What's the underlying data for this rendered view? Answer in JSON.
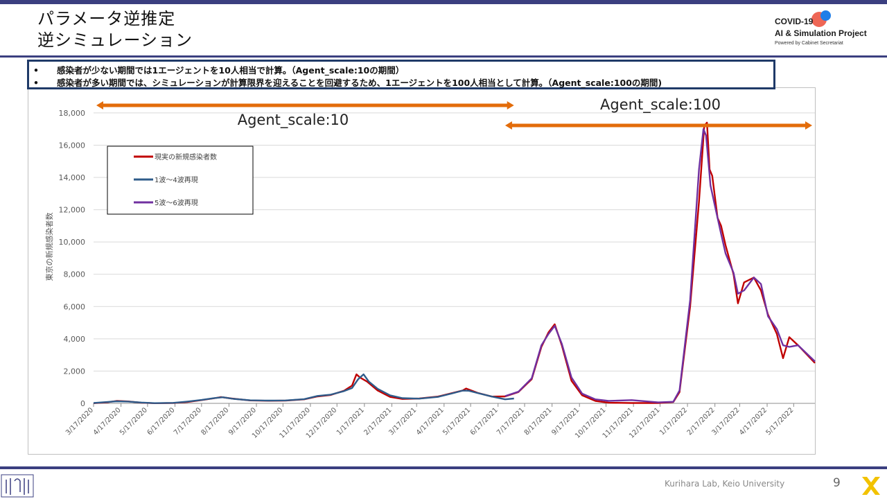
{
  "slide": {
    "title_line1": "パラメータ逆推定",
    "title_line2": "逆シミュレーション",
    "logo_line1": "COVID-19",
    "logo_line2": "AI & Simulation Project",
    "logo_line3": "Powered by Cabinet Secretariat",
    "notes": [
      "感染者が少ない期間では1エージェントを10人相当で計算。（Agent_scale:10の期間）",
      "感染者が多い期間では、シミュレーションが計算限界を迎えることを回避するため、1エージェントを100人相当として計算。（Agent_scale:100の期間)"
    ],
    "bullet": "•",
    "footer": "Kurihara Lab, Keio University",
    "page_number": "9",
    "colors": {
      "accent": "#3b3f80",
      "note_border": "#1f3a68",
      "arrow": "#e36c0a"
    }
  },
  "chart_data": {
    "type": "line",
    "ylabel": "東京の新規感染者数",
    "ylim": [
      0,
      19500
    ],
    "yticks": [
      0,
      2000,
      4000,
      6000,
      8000,
      10000,
      12000,
      14000,
      16000,
      18000
    ],
    "ytick_labels": [
      "0",
      "2,000",
      "4,000",
      "6,000",
      "8,000",
      "10,000",
      "12,000",
      "14,000",
      "16,000",
      "18,000"
    ],
    "xlim": [
      "2020-03-17",
      "2022-06-10"
    ],
    "xtick_labels": [
      "3/17/2020",
      "4/17/2020",
      "5/17/2020",
      "6/17/2020",
      "7/17/2020",
      "8/17/2020",
      "9/17/2020",
      "10/17/2020",
      "11/17/2020",
      "12/17/2020",
      "1/17/2021",
      "2/17/2021",
      "3/17/2021",
      "4/17/2021",
      "5/17/2021",
      "6/17/2021",
      "7/17/2021",
      "8/17/2021",
      "9/17/2021",
      "10/17/2021",
      "11/17/2021",
      "12/17/2021",
      "1/17/2022",
      "2/17/2022",
      "3/17/2022",
      "4/17/2022",
      "5/17/2022"
    ],
    "grid": true,
    "legend_placement": "top-left",
    "annotations": [
      {
        "label": "Agent_scale:10",
        "from": "2020-03-17",
        "to": "2021-07-05"
      },
      {
        "label": "Agent_scale:100",
        "from": "2021-06-25",
        "to": "2022-06-10"
      }
    ],
    "series": [
      {
        "name": "現実の新規感染者数",
        "color": "#c00000",
        "points": [
          [
            "2020-03-17",
            10
          ],
          [
            "2020-04-01",
            60
          ],
          [
            "2020-04-12",
            150
          ],
          [
            "2020-04-25",
            120
          ],
          [
            "2020-05-10",
            40
          ],
          [
            "2020-05-25",
            10
          ],
          [
            "2020-06-15",
            20
          ],
          [
            "2020-07-01",
            80
          ],
          [
            "2020-07-17",
            200
          ],
          [
            "2020-08-01",
            320
          ],
          [
            "2020-08-08",
            390
          ],
          [
            "2020-08-20",
            300
          ],
          [
            "2020-09-10",
            180
          ],
          [
            "2020-10-01",
            160
          ],
          [
            "2020-10-20",
            170
          ],
          [
            "2020-11-10",
            250
          ],
          [
            "2020-11-25",
            430
          ],
          [
            "2020-12-10",
            520
          ],
          [
            "2020-12-25",
            780
          ],
          [
            "2021-01-03",
            1100
          ],
          [
            "2021-01-08",
            1800
          ],
          [
            "2021-01-12",
            1600
          ],
          [
            "2021-01-20",
            1350
          ],
          [
            "2021-02-01",
            800
          ],
          [
            "2021-02-15",
            400
          ],
          [
            "2021-03-01",
            270
          ],
          [
            "2021-03-20",
            300
          ],
          [
            "2021-04-10",
            420
          ],
          [
            "2021-04-25",
            620
          ],
          [
            "2021-05-08",
            800
          ],
          [
            "2021-05-12",
            920
          ],
          [
            "2021-05-25",
            650
          ],
          [
            "2021-06-10",
            420
          ],
          [
            "2021-06-25",
            430
          ],
          [
            "2021-07-10",
            700
          ],
          [
            "2021-07-25",
            1500
          ],
          [
            "2021-08-05",
            3500
          ],
          [
            "2021-08-13",
            4400
          ],
          [
            "2021-08-20",
            4900
          ],
          [
            "2021-08-28",
            3600
          ],
          [
            "2021-09-08",
            1400
          ],
          [
            "2021-09-20",
            500
          ],
          [
            "2021-10-05",
            150
          ],
          [
            "2021-10-20",
            40
          ],
          [
            "2021-11-15",
            20
          ],
          [
            "2021-12-15",
            20
          ],
          [
            "2022-01-01",
            80
          ],
          [
            "2022-01-08",
            700
          ],
          [
            "2022-01-20",
            6000
          ],
          [
            "2022-01-30",
            12500
          ],
          [
            "2022-02-05",
            17200
          ],
          [
            "2022-02-08",
            17400
          ],
          [
            "2022-02-11",
            14500
          ],
          [
            "2022-02-14",
            14100
          ],
          [
            "2022-02-20",
            11500
          ],
          [
            "2022-02-24",
            11000
          ],
          [
            "2022-03-01",
            9800
          ],
          [
            "2022-03-10",
            8000
          ],
          [
            "2022-03-15",
            6200
          ],
          [
            "2022-03-22",
            7500
          ],
          [
            "2022-04-02",
            7800
          ],
          [
            "2022-04-10",
            7000
          ],
          [
            "2022-04-18",
            5500
          ],
          [
            "2022-04-28",
            4300
          ],
          [
            "2022-05-05",
            2800
          ],
          [
            "2022-05-12",
            4100
          ],
          [
            "2022-05-22",
            3600
          ],
          [
            "2022-06-10",
            2500
          ]
        ]
      },
      {
        "name": "1波～4波再現",
        "color": "#2e5b8a",
        "points": [
          [
            "2020-03-17",
            20
          ],
          [
            "2020-04-01",
            80
          ],
          [
            "2020-04-12",
            130
          ],
          [
            "2020-04-25",
            110
          ],
          [
            "2020-05-10",
            50
          ],
          [
            "2020-05-25",
            15
          ],
          [
            "2020-06-15",
            30
          ],
          [
            "2020-07-01",
            110
          ],
          [
            "2020-07-17",
            210
          ],
          [
            "2020-08-01",
            330
          ],
          [
            "2020-08-10",
            380
          ],
          [
            "2020-08-22",
            280
          ],
          [
            "2020-09-10",
            190
          ],
          [
            "2020-10-01",
            170
          ],
          [
            "2020-10-20",
            180
          ],
          [
            "2020-11-10",
            260
          ],
          [
            "2020-11-25",
            460
          ],
          [
            "2020-12-10",
            540
          ],
          [
            "2020-12-25",
            760
          ],
          [
            "2021-01-03",
            950
          ],
          [
            "2021-01-10",
            1500
          ],
          [
            "2021-01-16",
            1800
          ],
          [
            "2021-01-22",
            1350
          ],
          [
            "2021-02-01",
            900
          ],
          [
            "2021-02-15",
            500
          ],
          [
            "2021-03-01",
            320
          ],
          [
            "2021-03-20",
            290
          ],
          [
            "2021-04-10",
            400
          ],
          [
            "2021-04-25",
            600
          ],
          [
            "2021-05-08",
            790
          ],
          [
            "2021-05-15",
            780
          ],
          [
            "2021-05-25",
            640
          ],
          [
            "2021-06-10",
            420
          ],
          [
            "2021-06-25",
            250
          ],
          [
            "2021-07-05",
            300
          ]
        ]
      },
      {
        "name": "5波～6波再現",
        "color": "#7030a0",
        "points": [
          [
            "2021-06-25",
            450
          ],
          [
            "2021-07-10",
            720
          ],
          [
            "2021-07-25",
            1550
          ],
          [
            "2021-08-05",
            3600
          ],
          [
            "2021-08-13",
            4300
          ],
          [
            "2021-08-20",
            4800
          ],
          [
            "2021-08-28",
            3700
          ],
          [
            "2021-09-08",
            1600
          ],
          [
            "2021-09-20",
            600
          ],
          [
            "2021-10-05",
            250
          ],
          [
            "2021-10-20",
            150
          ],
          [
            "2021-11-15",
            200
          ],
          [
            "2021-12-15",
            60
          ],
          [
            "2022-01-01",
            100
          ],
          [
            "2022-01-08",
            800
          ],
          [
            "2022-01-20",
            6400
          ],
          [
            "2022-01-30",
            14500
          ],
          [
            "2022-02-04",
            17000
          ],
          [
            "2022-02-07",
            16600
          ],
          [
            "2022-02-12",
            13500
          ],
          [
            "2022-02-18",
            12000
          ],
          [
            "2022-02-24",
            10500
          ],
          [
            "2022-03-01",
            9300
          ],
          [
            "2022-03-10",
            8100
          ],
          [
            "2022-03-15",
            6800
          ],
          [
            "2022-03-22",
            7000
          ],
          [
            "2022-04-02",
            7800
          ],
          [
            "2022-04-10",
            7400
          ],
          [
            "2022-04-18",
            5400
          ],
          [
            "2022-04-28",
            4600
          ],
          [
            "2022-05-05",
            3600
          ],
          [
            "2022-05-12",
            3500
          ],
          [
            "2022-05-22",
            3600
          ],
          [
            "2022-06-10",
            2600
          ]
        ]
      }
    ]
  }
}
